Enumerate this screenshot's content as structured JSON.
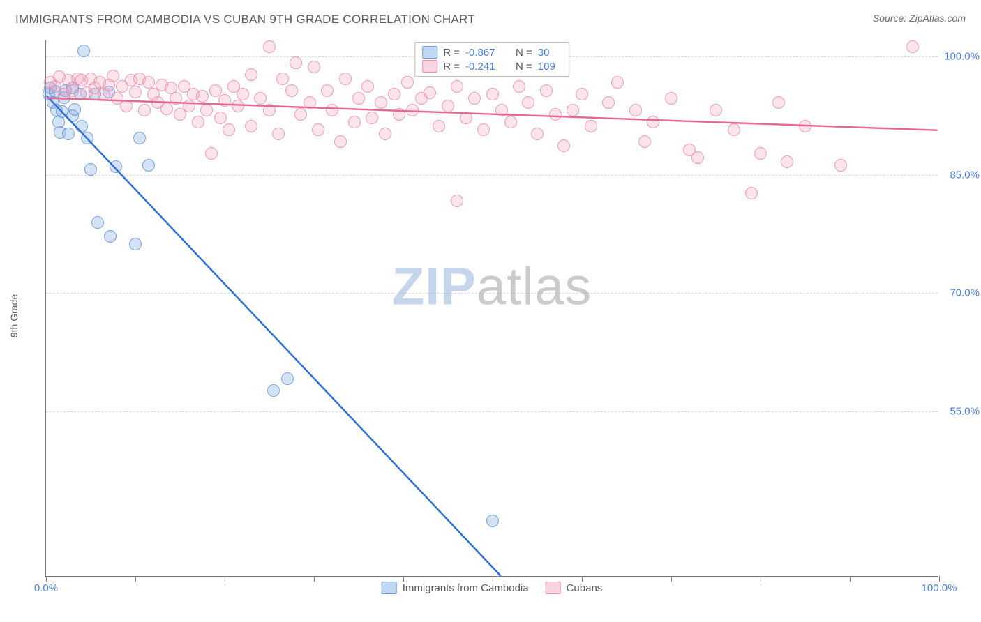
{
  "header": {
    "title": "IMMIGRANTS FROM CAMBODIA VS CUBAN 9TH GRADE CORRELATION CHART",
    "source_prefix": "Source: ",
    "source_name": "ZipAtlas.com"
  },
  "chart": {
    "type": "scatter",
    "ylabel": "9th Grade",
    "xlim": [
      0,
      100
    ],
    "ylim": [
      34,
      102
    ],
    "xtick_positions": [
      0,
      10,
      20,
      30,
      40,
      50,
      60,
      70,
      80,
      90,
      100
    ],
    "xtick_labels": {
      "0": "0.0%",
      "100": "100.0%"
    },
    "ytick_positions": [
      55,
      70,
      85,
      100
    ],
    "ytick_labels": {
      "55": "55.0%",
      "70": "70.0%",
      "85": "85.0%",
      "100": "100.0%"
    },
    "grid_color": "#d9d9d9",
    "axis_color": "#777777",
    "background": "#ffffff",
    "watermark": {
      "part1": "ZIP",
      "part2": "atlas"
    },
    "series": [
      {
        "id": "cambodia",
        "label": "Immigrants from Cambodia",
        "color_fill": "rgba(120,165,225,0.32)",
        "color_stroke": "rgba(90,140,210,0.75)",
        "marker": "circle",
        "marker_size": 18,
        "R": "-0.867",
        "N": "30",
        "trend": {
          "x1": 0,
          "y1": 95.0,
          "x2": 51,
          "y2": 34,
          "color": "#2d6fd6",
          "width": 2.5
        },
        "points": [
          [
            0.3,
            95.0
          ],
          [
            0.5,
            95.8
          ],
          [
            0.8,
            94.0
          ],
          [
            1.0,
            95.4
          ],
          [
            1.2,
            93.0
          ],
          [
            1.4,
            91.5
          ],
          [
            1.6,
            90.2
          ],
          [
            1.8,
            92.8
          ],
          [
            2.0,
            94.6
          ],
          [
            2.2,
            95.5
          ],
          [
            2.5,
            90.0
          ],
          [
            3.0,
            95.8
          ],
          [
            3.0,
            92.3
          ],
          [
            3.2,
            93.1
          ],
          [
            3.8,
            95.0
          ],
          [
            4.0,
            91.0
          ],
          [
            4.2,
            100.5
          ],
          [
            4.6,
            89.5
          ],
          [
            5.0,
            85.5
          ],
          [
            5.5,
            95.0
          ],
          [
            5.8,
            78.8
          ],
          [
            7.2,
            77.0
          ],
          [
            7.0,
            95.3
          ],
          [
            7.8,
            85.8
          ],
          [
            10.0,
            76.0
          ],
          [
            10.5,
            89.5
          ],
          [
            11.5,
            86.0
          ],
          [
            27.0,
            59.0
          ],
          [
            25.5,
            57.5
          ],
          [
            50.0,
            41.0
          ]
        ]
      },
      {
        "id": "cubans",
        "label": "Cubans",
        "color_fill": "rgba(245,165,190,0.30)",
        "color_stroke": "rgba(235,130,165,0.75)",
        "marker": "circle",
        "marker_size": 18,
        "R": "-0.241",
        "N": "109",
        "trend": {
          "x1": 0,
          "y1": 94.7,
          "x2": 100,
          "y2": 90.6,
          "color": "#e46a95",
          "width": 2.5
        },
        "points": [
          [
            0.5,
            96.5
          ],
          [
            1.0,
            96.0
          ],
          [
            1.5,
            97.2
          ],
          [
            2.0,
            95.0
          ],
          [
            2.5,
            96.8
          ],
          [
            3.0,
            95.5
          ],
          [
            3.5,
            97.0
          ],
          [
            4.0,
            96.8
          ],
          [
            4.5,
            95.2
          ],
          [
            5.0,
            97.0
          ],
          [
            5.5,
            95.8
          ],
          [
            6.0,
            96.5
          ],
          [
            6.5,
            95.0
          ],
          [
            7.0,
            96.2
          ],
          [
            7.5,
            97.3
          ],
          [
            8.0,
            94.5
          ],
          [
            8.5,
            96.0
          ],
          [
            9.0,
            93.5
          ],
          [
            9.5,
            96.8
          ],
          [
            10.0,
            95.3
          ],
          [
            10.5,
            97.0
          ],
          [
            11.0,
            93.0
          ],
          [
            11.5,
            96.5
          ],
          [
            12.0,
            95.0
          ],
          [
            12.5,
            94.0
          ],
          [
            13.0,
            96.2
          ],
          [
            13.5,
            93.2
          ],
          [
            14.0,
            95.8
          ],
          [
            14.5,
            94.5
          ],
          [
            15.0,
            92.5
          ],
          [
            15.5,
            96.0
          ],
          [
            16.0,
            93.5
          ],
          [
            16.5,
            95.0
          ],
          [
            17.0,
            91.5
          ],
          [
            17.5,
            94.8
          ],
          [
            18.0,
            93.0
          ],
          [
            18.5,
            87.5
          ],
          [
            19.0,
            95.5
          ],
          [
            19.5,
            92.0
          ],
          [
            20.0,
            94.2
          ],
          [
            20.5,
            90.5
          ],
          [
            21.0,
            96.0
          ],
          [
            21.5,
            93.5
          ],
          [
            22.0,
            95.0
          ],
          [
            23.0,
            97.5
          ],
          [
            23.0,
            91.0
          ],
          [
            24.0,
            94.5
          ],
          [
            25.0,
            93.0
          ],
          [
            25.0,
            101.0
          ],
          [
            26.0,
            90.0
          ],
          [
            26.5,
            97.0
          ],
          [
            27.5,
            95.5
          ],
          [
            28.0,
            99.0
          ],
          [
            28.5,
            92.5
          ],
          [
            29.5,
            94.0
          ],
          [
            30.0,
            98.5
          ],
          [
            30.5,
            90.5
          ],
          [
            31.5,
            95.5
          ],
          [
            32.0,
            93.0
          ],
          [
            33.0,
            89.0
          ],
          [
            33.5,
            97.0
          ],
          [
            34.5,
            91.5
          ],
          [
            35.0,
            94.5
          ],
          [
            36.0,
            96.0
          ],
          [
            36.5,
            92.0
          ],
          [
            37.5,
            94.0
          ],
          [
            38.0,
            90.0
          ],
          [
            39.0,
            95.0
          ],
          [
            39.5,
            92.5
          ],
          [
            40.5,
            96.5
          ],
          [
            41.0,
            93.0
          ],
          [
            42.0,
            94.5
          ],
          [
            43.0,
            95.2
          ],
          [
            44.0,
            91.0
          ],
          [
            45.0,
            93.5
          ],
          [
            46.0,
            96.0
          ],
          [
            46.0,
            81.5
          ],
          [
            47.0,
            92.0
          ],
          [
            48.0,
            94.5
          ],
          [
            49.0,
            90.5
          ],
          [
            50.0,
            95.0
          ],
          [
            51.0,
            93.0
          ],
          [
            52.0,
            91.5
          ],
          [
            53.0,
            96.0
          ],
          [
            54.0,
            94.0
          ],
          [
            55.0,
            90.0
          ],
          [
            56.0,
            95.5
          ],
          [
            57.0,
            92.5
          ],
          [
            58.0,
            88.5
          ],
          [
            59.0,
            93.0
          ],
          [
            60.0,
            95.0
          ],
          [
            61.0,
            91.0
          ],
          [
            63.0,
            94.0
          ],
          [
            64.0,
            96.5
          ],
          [
            66.0,
            93.0
          ],
          [
            67.0,
            89.0
          ],
          [
            68.0,
            91.5
          ],
          [
            70.0,
            94.5
          ],
          [
            72.0,
            88.0
          ],
          [
            73.0,
            87.0
          ],
          [
            75.0,
            93.0
          ],
          [
            77.0,
            90.5
          ],
          [
            79.0,
            82.5
          ],
          [
            80.0,
            87.5
          ],
          [
            82.0,
            94.0
          ],
          [
            83.0,
            86.5
          ],
          [
            85.0,
            91.0
          ],
          [
            89.0,
            86.0
          ],
          [
            97.0,
            101.0
          ]
        ]
      }
    ],
    "legend_top_labels": {
      "R": "R =",
      "N": "N ="
    },
    "legend_bottom": [
      {
        "swatch": "blue",
        "text": "Immigrants from Cambodia"
      },
      {
        "swatch": "pink",
        "text": "Cubans"
      }
    ]
  }
}
